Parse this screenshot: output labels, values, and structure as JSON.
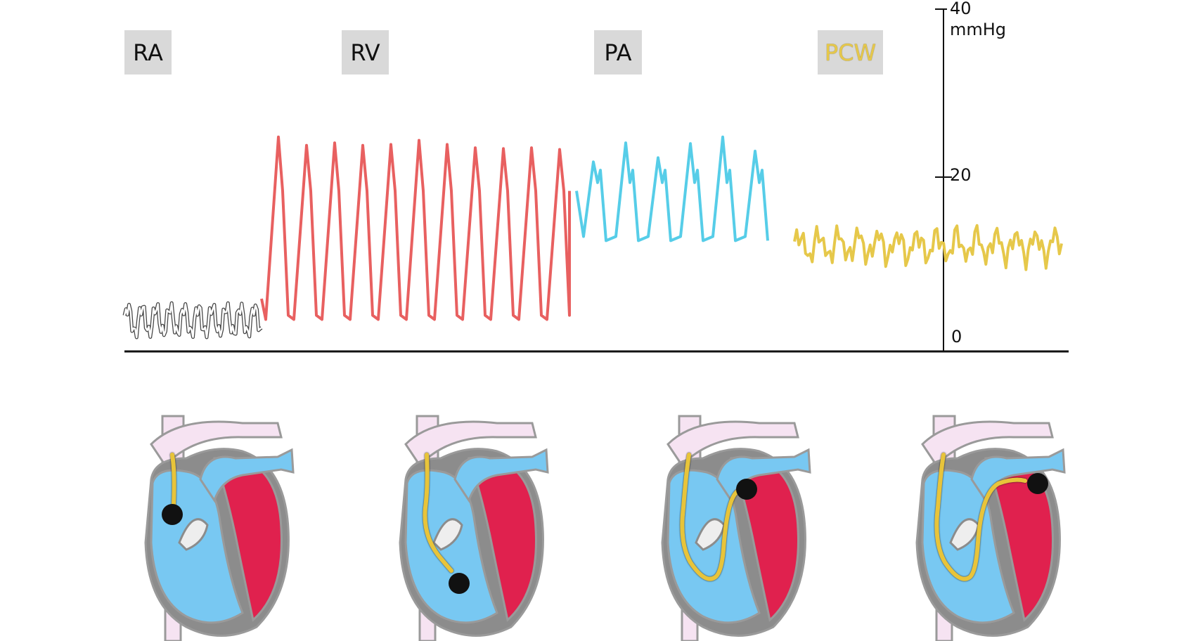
{
  "labels": {
    "ra": "RA",
    "rv": "RV",
    "pa": "PA",
    "pcw": "PCW"
  },
  "axis": {
    "max": "40",
    "unit": "mmHg",
    "mid": "20",
    "zero": "0"
  },
  "colors": {
    "ra": "#ffffff",
    "rv": "#e86060",
    "pa": "#56cde8",
    "pcw": "#e6c84a",
    "heart_red": "#e0214e",
    "heart_blue": "#78c8f2",
    "heart_pink": "#f6e3f2",
    "heart_gray": "#8c8c8c",
    "catheter": "#e8c43a",
    "tip": "#111111"
  }
}
